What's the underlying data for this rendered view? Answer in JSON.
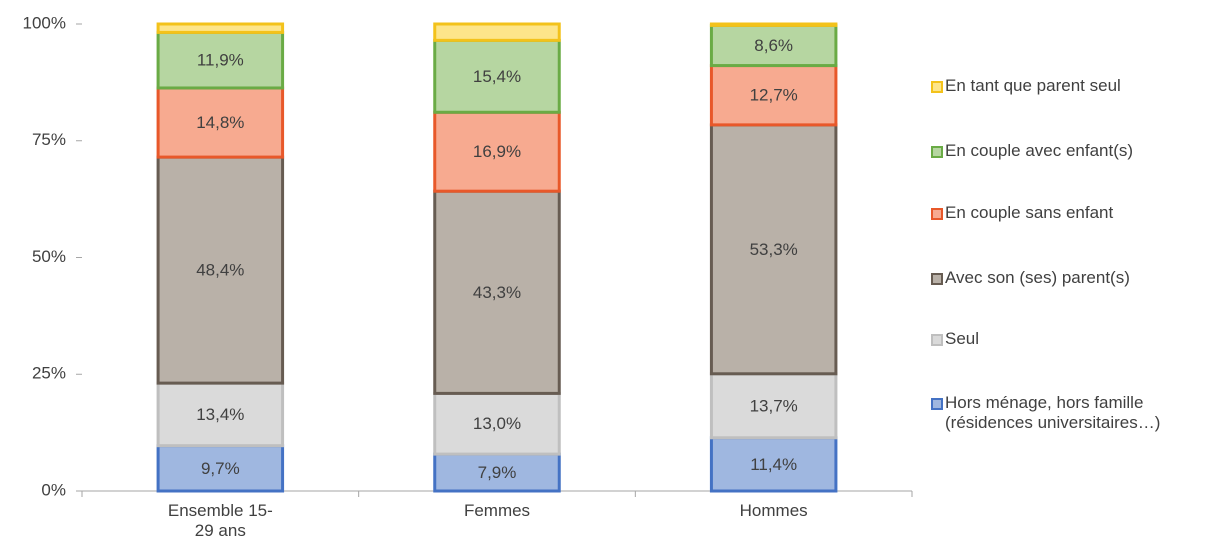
{
  "chart_data": {
    "type": "stacked_bar",
    "categories": [
      "Ensemble 15-29 ans",
      "Femmes",
      "Hommes"
    ],
    "ylim": [
      0,
      100
    ],
    "yticks": [
      {
        "value": 0,
        "label": "0%"
      },
      {
        "value": 25,
        "label": "25%"
      },
      {
        "value": 50,
        "label": "50%"
      },
      {
        "value": 75,
        "label": "75%"
      },
      {
        "value": 100,
        "label": "100%"
      }
    ],
    "grid": false,
    "legend": "right",
    "series": [
      {
        "name": "Hors ménage, hors famille (résidences universitaires…)",
        "color": "#9fb7e0",
        "edge_color": "#4472c4",
        "values": [
          9.7,
          7.9,
          11.4
        ],
        "value_labels": [
          "9,7%",
          "7,9%",
          "11,4%"
        ]
      },
      {
        "name": "Seul",
        "color": "#dadada",
        "edge_color": "#bfbfbf",
        "values": [
          13.4,
          13.0,
          13.7
        ],
        "value_labels": [
          "13,4%",
          "13,0%",
          "13,7%"
        ]
      },
      {
        "name": "Avec son (ses) parent(s)",
        "color": "#b9b1a8",
        "edge_color": "#675c52",
        "values": [
          48.4,
          43.3,
          53.3
        ],
        "value_labels": [
          "48,4%",
          "43,3%",
          "53,3%"
        ]
      },
      {
        "name": "En couple sans enfant",
        "color": "#f7aa90",
        "edge_color": "#e8582a",
        "values": [
          14.8,
          16.9,
          12.7
        ],
        "value_labels": [
          "14,8%",
          "16,9%",
          "12,7%"
        ]
      },
      {
        "name": "En couple avec enfant(s)",
        "color": "#b6d6a1",
        "edge_color": "#6aab45",
        "values": [
          11.9,
          15.4,
          8.6
        ],
        "value_labels": [
          "11,9%",
          "15,4%",
          "8,6%"
        ]
      },
      {
        "name": "En tant que parent seul",
        "color": "#fde58a",
        "edge_color": "#f3c21b",
        "values": [
          1.8,
          3.5,
          0.3
        ],
        "value_labels": [
          null,
          null,
          null
        ]
      }
    ]
  }
}
